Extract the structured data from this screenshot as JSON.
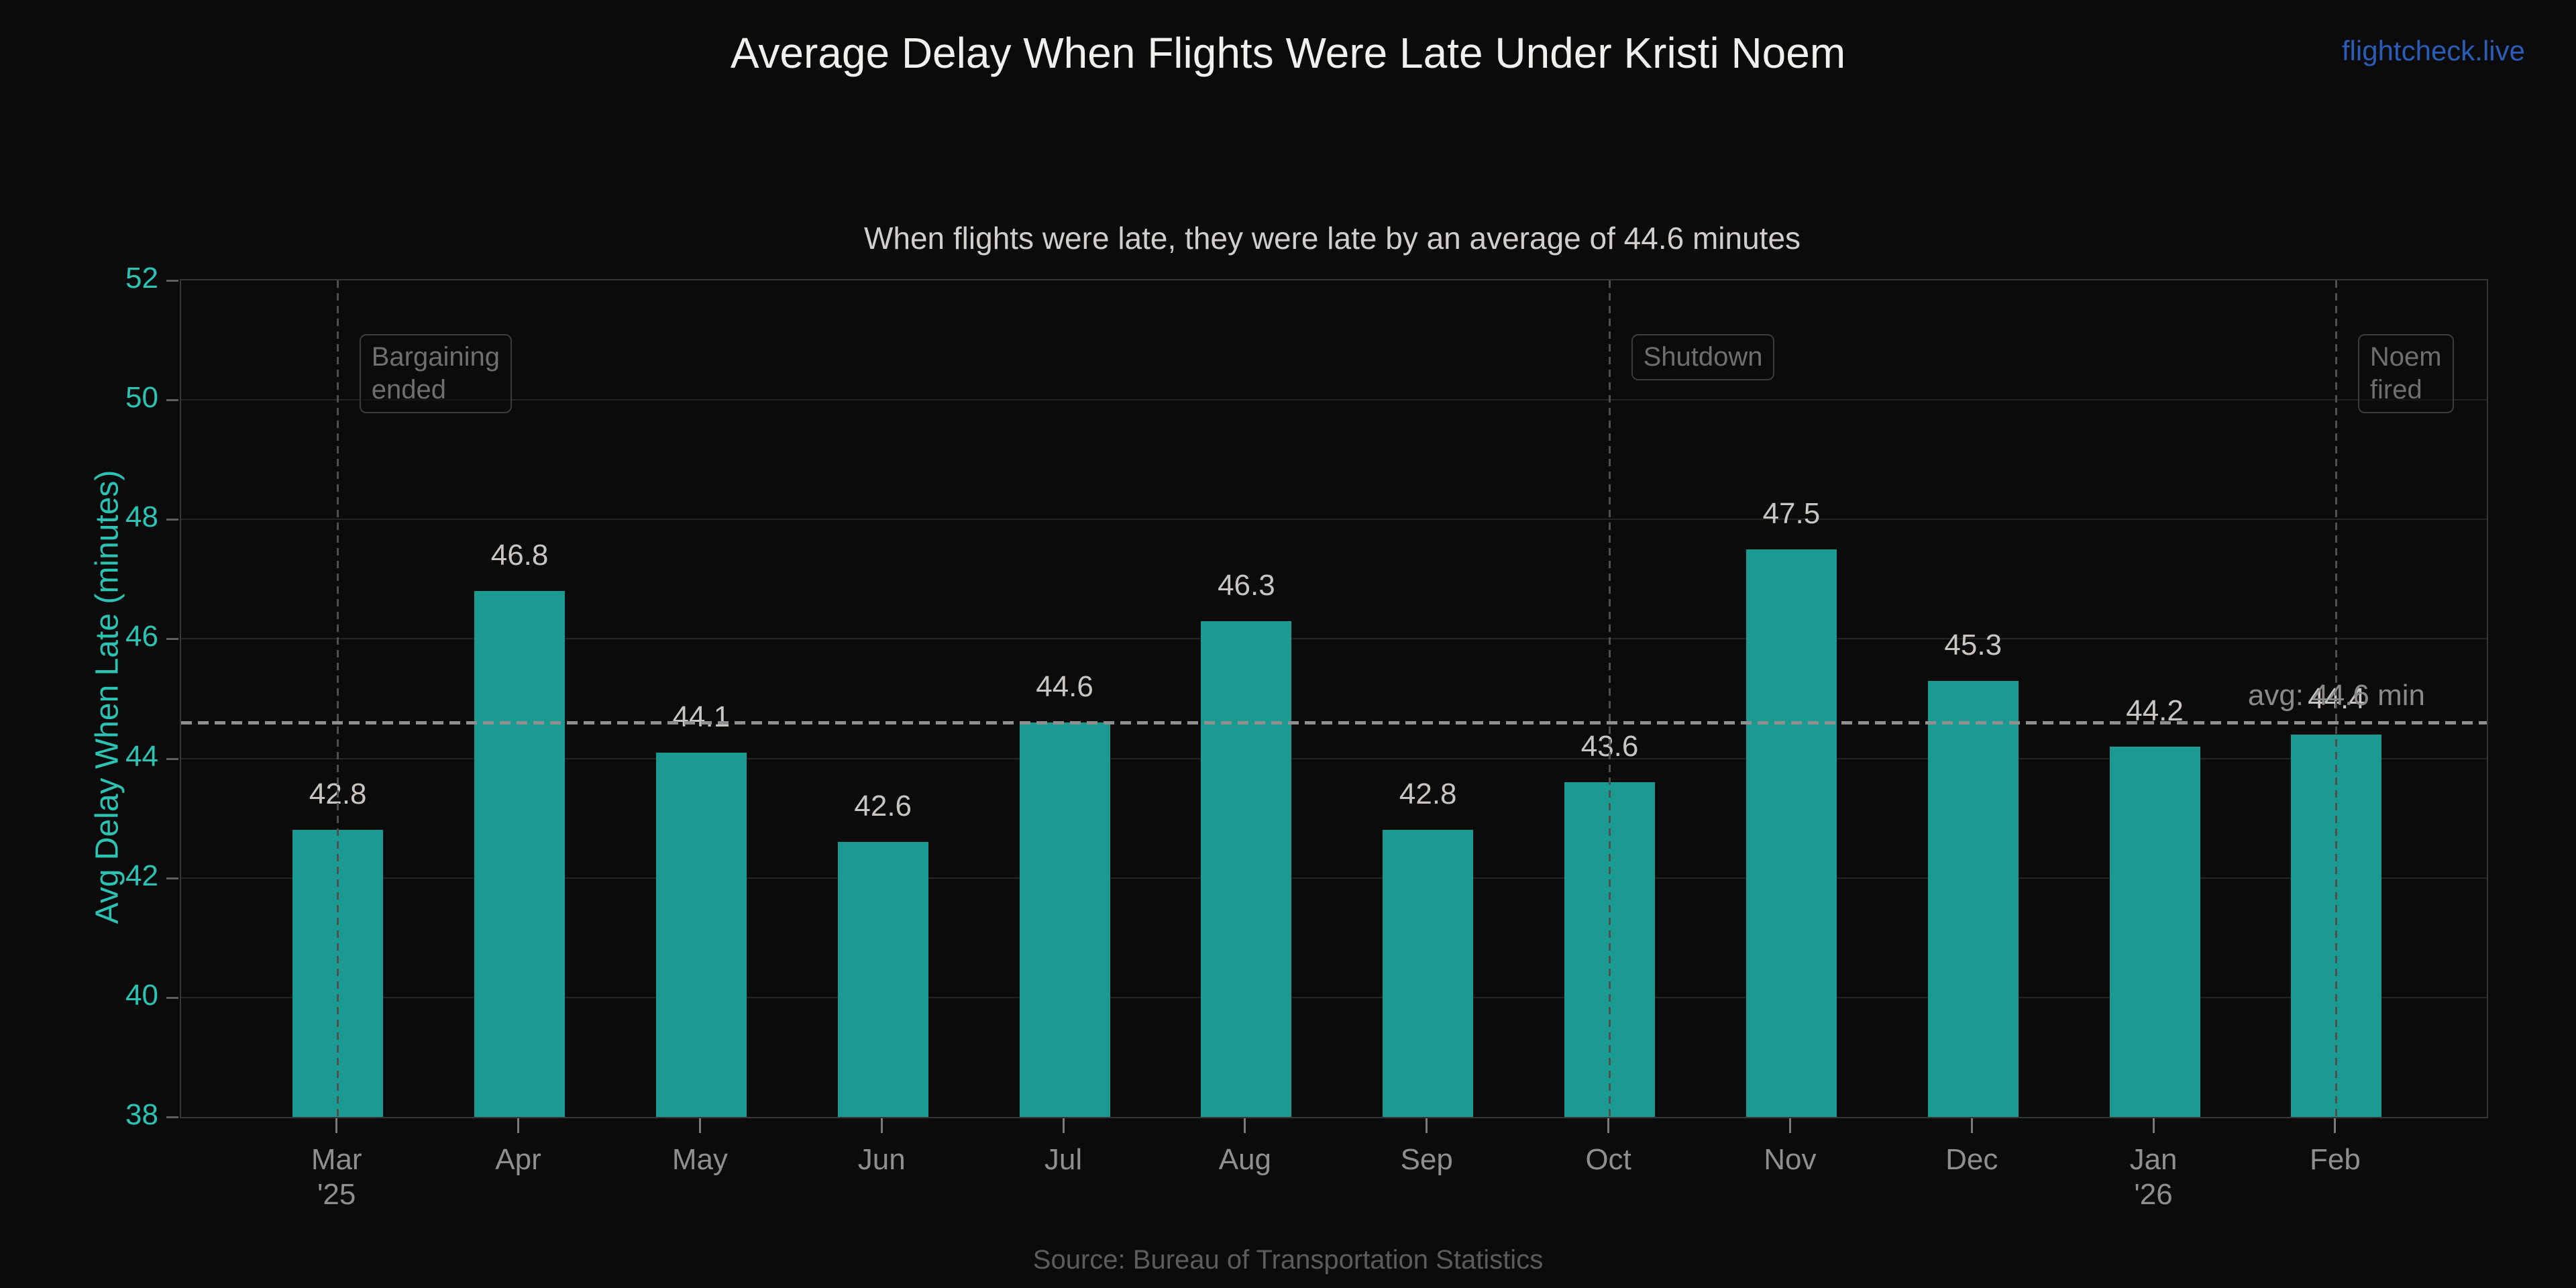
{
  "header": {
    "title": "Average Delay When Flights Were Late Under Kristi Noem",
    "brand": "flightcheck.live"
  },
  "subtitle": "When flights were late, they were late by an average of 44.6 minutes",
  "chart_data": {
    "type": "bar",
    "categories": [
      "Mar '25",
      "Apr",
      "May",
      "Jun",
      "Jul",
      "Aug",
      "Sep",
      "Oct",
      "Nov",
      "Dec",
      "Jan '26",
      "Feb"
    ],
    "x_tick_labels": [
      [
        "Mar",
        "'25"
      ],
      [
        "Apr"
      ],
      [
        "May"
      ],
      [
        "Jun"
      ],
      [
        "Jul"
      ],
      [
        "Aug"
      ],
      [
        "Sep"
      ],
      [
        "Oct"
      ],
      [
        "Nov"
      ],
      [
        "Dec"
      ],
      [
        "Jan",
        "'26"
      ],
      [
        "Feb"
      ]
    ],
    "values": [
      42.8,
      46.8,
      44.1,
      42.6,
      44.6,
      46.3,
      42.8,
      43.6,
      47.5,
      45.3,
      44.2,
      44.4
    ],
    "ylabel": "Avg Delay When Late (minutes)",
    "xlabel": "",
    "ylim": [
      38,
      52
    ],
    "yticks": [
      38,
      40,
      42,
      44,
      46,
      48,
      50,
      52
    ],
    "grid": true,
    "legend": null,
    "average": {
      "value": 44.6,
      "label": "avg: 44.6 min"
    },
    "annotations": [
      {
        "index": 0,
        "lines": [
          "Bargaining",
          "ended"
        ]
      },
      {
        "index": 7,
        "lines": [
          "Shutdown"
        ]
      },
      {
        "index": 11,
        "lines": [
          "Noem",
          "fired"
        ]
      }
    ],
    "colors": {
      "bar": "#1a9a90",
      "axis_teal": "#2cc2b4",
      "value_label": "#c9c5c1",
      "avg_line": "#8f8f8f",
      "event_line": "#4f4f4f",
      "annotation": "#6f6f6f",
      "grid": "#242424",
      "background": "#0b0b0b",
      "brand_blue": "#2a5cb8",
      "title": "#f2f0ed"
    }
  },
  "footer": {
    "source": "Source: Bureau of Transportation Statistics"
  }
}
